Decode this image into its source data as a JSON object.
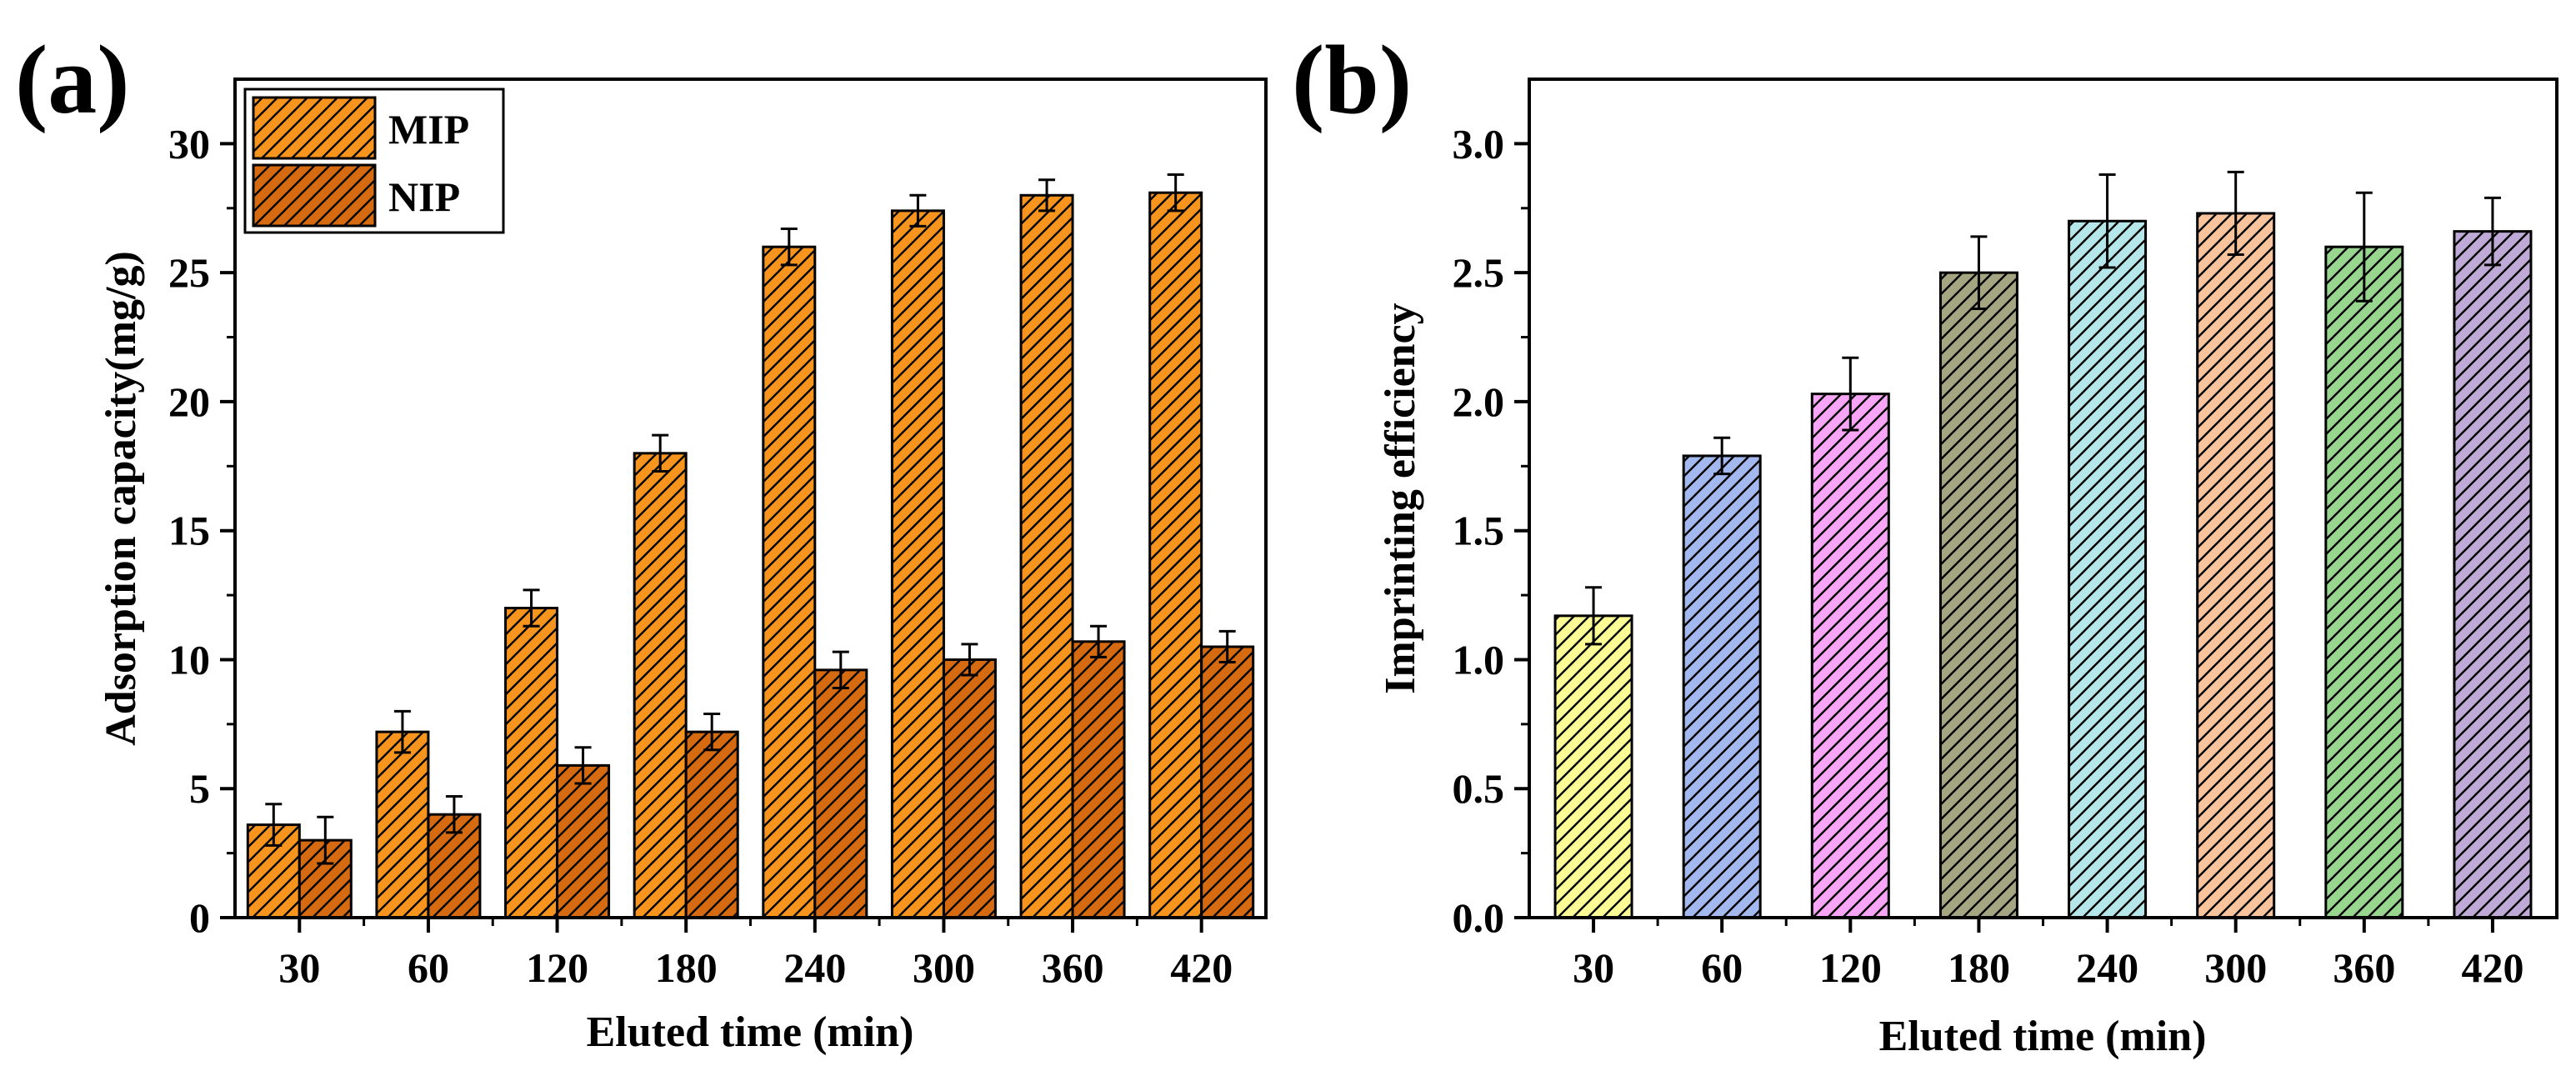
{
  "chart_data": [
    {
      "panel_label": "(a)",
      "type": "bar",
      "xlabel": "Eluted time (min)",
      "ylabel": "Adsorption capacity(mg/g)",
      "categories": [
        "30",
        "60",
        "120",
        "180",
        "240",
        "300",
        "360",
        "420"
      ],
      "ylim": [
        0,
        32.5
      ],
      "yticks": [
        "0",
        "5",
        "10",
        "15",
        "20",
        "25",
        "30"
      ],
      "yticks_values": [
        0,
        5,
        10,
        15,
        20,
        25,
        30
      ],
      "grid": false,
      "legend_position": "top-left",
      "series": [
        {
          "name": "MIP",
          "color": "#F7941D",
          "values": [
            3.6,
            7.2,
            12.0,
            18.0,
            26.0,
            27.4,
            28.0,
            28.1
          ],
          "errors": [
            0.8,
            0.8,
            0.7,
            0.7,
            0.7,
            0.6,
            0.6,
            0.7
          ]
        },
        {
          "name": "NIP",
          "color": "#D56A10",
          "values": [
            3.0,
            4.0,
            5.9,
            7.2,
            9.6,
            10.0,
            10.7,
            10.5
          ],
          "errors": [
            0.9,
            0.7,
            0.7,
            0.7,
            0.7,
            0.6,
            0.6,
            0.6
          ]
        }
      ]
    },
    {
      "panel_label": "(b)",
      "type": "bar",
      "xlabel": "Eluted time (min)",
      "ylabel": "Imprinting efficiency",
      "categories": [
        "30",
        "60",
        "120",
        "180",
        "240",
        "300",
        "360",
        "420"
      ],
      "ylim": [
        0,
        3.25
      ],
      "yticks": [
        "0.0",
        "0.5",
        "1.0",
        "1.5",
        "2.0",
        "2.5",
        "3.0"
      ],
      "yticks_values": [
        0,
        0.5,
        1.0,
        1.5,
        2.0,
        2.5,
        3.0
      ],
      "grid": false,
      "values": [
        1.17,
        1.79,
        2.03,
        2.5,
        2.7,
        2.73,
        2.6,
        2.66
      ],
      "errors": [
        0.11,
        0.07,
        0.14,
        0.14,
        0.18,
        0.16,
        0.21,
        0.13
      ],
      "colors": [
        "#FDFD96",
        "#A3B8EF",
        "#F9A5F7",
        "#A5A581",
        "#B5E6EA",
        "#F9C49C",
        "#98D58F",
        "#BFA9D6"
      ]
    }
  ]
}
